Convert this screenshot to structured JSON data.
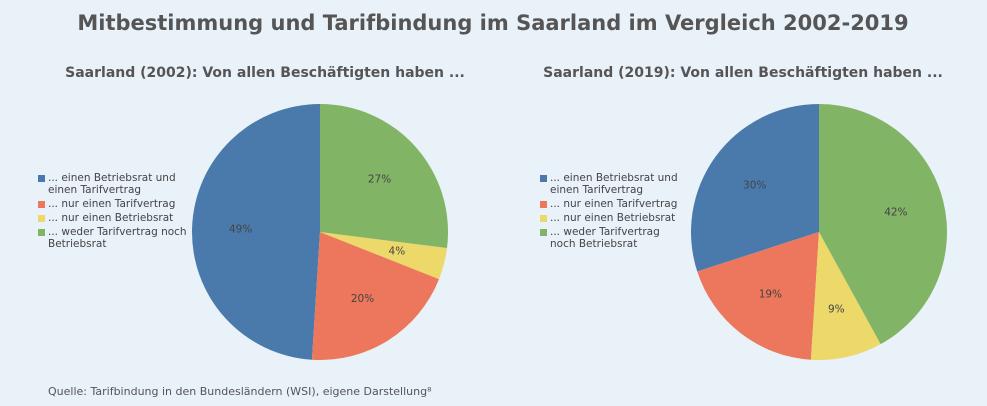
{
  "title": "Mitbestimmung und Tarifbindung im Saarland im Vergleich 2002-2019",
  "source": "Quelle: Tarifbindung in den Bundesländern (WSI), eigene Darstellung⁸",
  "chart_data": [
    {
      "type": "pie",
      "title": "Saarland (2002): Von allen Beschäftigten haben ...",
      "categories": [
        "... einen Betriebsrat und einen Tarifvertrag",
        "... nur einen Tarifvertrag",
        "... nur einen Betriebsrat",
        "... weder Tarifvertrag noch Betriebsrat"
      ],
      "values": [
        49,
        20,
        4,
        27
      ],
      "value_labels": [
        "49%",
        "20%",
        "4%",
        "27%"
      ],
      "colors": [
        "#4a7aab",
        "#ec775c",
        "#edd86a",
        "#82b466"
      ],
      "legend": "left"
    },
    {
      "type": "pie",
      "title": "Saarland (2019): Von allen Beschäftigten haben ...",
      "categories": [
        "... einen Betriebsrat und einen Tarifvertrag",
        "... nur einen Tarifvertrag",
        "... nur einen Betriebsrat",
        "... weder Tarifvertrag noch Betriebsrat"
      ],
      "values": [
        30,
        19,
        9,
        42
      ],
      "value_labels": [
        "30%",
        "19%",
        "9%",
        "42%"
      ],
      "colors": [
        "#4a7aab",
        "#ec775c",
        "#edd86a",
        "#82b466"
      ],
      "legend": "left"
    }
  ]
}
